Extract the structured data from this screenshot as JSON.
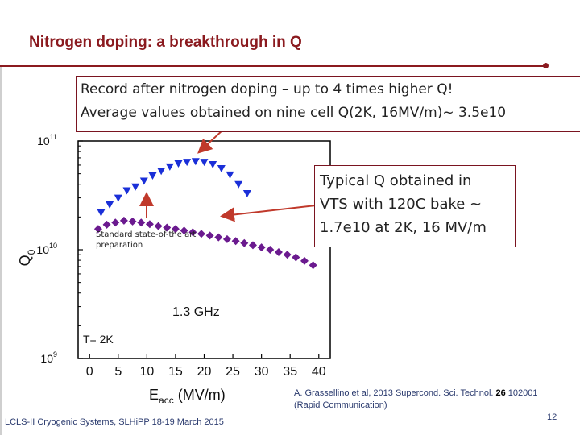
{
  "slide": {
    "title": "Nitrogen doping: a breakthrough in Q",
    "callout_top_line1": "Record after nitrogen doping – up to 4 times higher Q!",
    "callout_top_line2": "Average values obtained on nine cell Q(2K, 16MV/m)~ 3.5e10",
    "callout_right_line1": "Typical Q obtained in",
    "callout_right_line2": "VTS with 120C bake ~",
    "callout_right_line3": "1.7e10 at 2K, 16 MV/m",
    "annotation_line1": "Standard state-of-the art",
    "annotation_line2": "preparation",
    "frequency_label": "1.3 GHz",
    "temperature_label": "T= 2K",
    "citation_before_volume": "A. Grassellino et al, 2013 Supercond. Sci. Technol. ",
    "citation_volume": "26",
    "citation_after_volume": " 102001",
    "citation_line2": "(Rapid Communication)",
    "footer": "LCLS-II Cryogenic Systems, SLHiPP 18-19 March 2015",
    "page_number": "12",
    "accent_color": "#8b1a1f"
  },
  "chart_data": {
    "type": "scatter",
    "xlabel_main": "E",
    "xlabel_sub": "acc",
    "xlabel_unit": " (MV/m)",
    "ylabel_main": "Q",
    "ylabel_sub": "0",
    "x_ticks": [
      "0",
      "5",
      "10",
      "15",
      "20",
      "25",
      "30",
      "35",
      "40"
    ],
    "y_ticks": [
      {
        "base": "10",
        "exp": "11",
        "value": 100000000000.0
      },
      {
        "base": "10",
        "exp": "10",
        "value": 10000000000.0
      },
      {
        "base": "10",
        "exp": "9",
        "value": 1000000000.0
      }
    ],
    "xlim": [
      -2,
      42
    ],
    "ylim": [
      1000000000.0,
      100000000000.0
    ],
    "y_scale": "log",
    "grid": false,
    "series": [
      {
        "marker": "triangle-down",
        "color": "#1a2fd8",
        "points": [
          [
            2,
            22000000000.0
          ],
          [
            3.5,
            26000000000.0
          ],
          [
            5,
            30000000000.0
          ],
          [
            6.5,
            35000000000.0
          ],
          [
            8,
            38000000000.0
          ],
          [
            9.5,
            43000000000.0
          ],
          [
            11,
            48000000000.0
          ],
          [
            12.5,
            53000000000.0
          ],
          [
            14,
            58000000000.0
          ],
          [
            15.5,
            62000000000.0
          ],
          [
            17,
            64000000000.0
          ],
          [
            18.5,
            65000000000.0
          ],
          [
            20,
            64000000000.0
          ],
          [
            21.5,
            61000000000.0
          ],
          [
            23,
            56000000000.0
          ],
          [
            24.5,
            49000000000.0
          ],
          [
            26,
            40000000000.0
          ],
          [
            27.5,
            33000000000.0
          ]
        ]
      },
      {
        "marker": "diamond",
        "color": "#6b1a8f",
        "points": [
          [
            1.5,
            15500000000.0
          ],
          [
            3,
            17000000000.0
          ],
          [
            4.5,
            17800000000.0
          ],
          [
            6,
            18500000000.0
          ],
          [
            7.5,
            18200000000.0
          ],
          [
            9,
            17800000000.0
          ],
          [
            10.5,
            17200000000.0
          ],
          [
            12,
            16500000000.0
          ],
          [
            13.5,
            16000000000.0
          ],
          [
            15,
            15500000000.0
          ],
          [
            16.5,
            15000000000.0
          ],
          [
            18,
            14500000000.0
          ],
          [
            19.5,
            14000000000.0
          ],
          [
            21,
            13500000000.0
          ],
          [
            22.5,
            13000000000.0
          ],
          [
            24,
            12500000000.0
          ],
          [
            25.5,
            12000000000.0
          ],
          [
            27,
            11500000000.0
          ],
          [
            28.5,
            11000000000.0
          ],
          [
            30,
            10500000000.0
          ],
          [
            31.5,
            10000000000.0
          ],
          [
            33,
            9500000000.0
          ],
          [
            34.5,
            9000000000.0
          ],
          [
            36,
            8500000000.0
          ],
          [
            37.5,
            7900000000.0
          ],
          [
            39,
            7200000000.0
          ]
        ]
      }
    ]
  }
}
